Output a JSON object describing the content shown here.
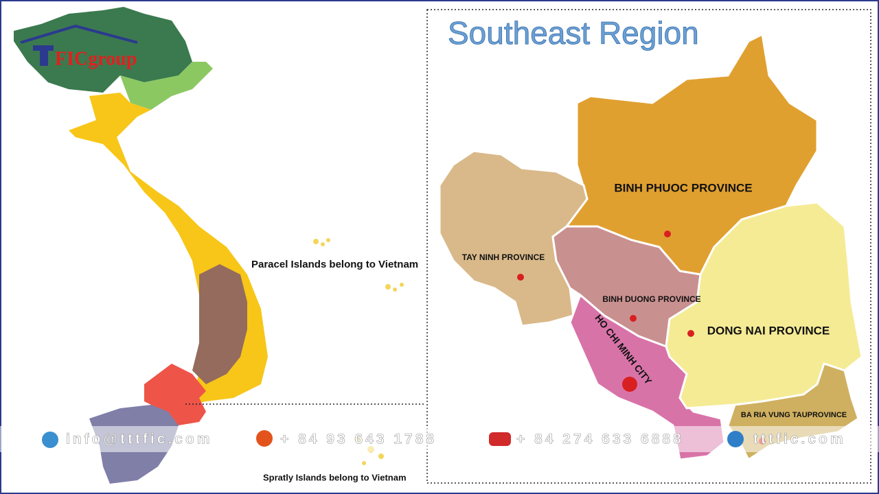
{
  "logo": "FICgroup",
  "title": "Southeast Region",
  "annotations": {
    "paracel": "Paracel Islands belong to Vietnam",
    "spratly": "Spratly Islands belong to Vietnam"
  },
  "provinces": [
    {
      "label": "BINH PHUOC PROVINCE"
    },
    {
      "label": "TAY NINH PROVINCE"
    },
    {
      "label": "BINH DUONG PROVINCE"
    },
    {
      "label": "HO CHI MINH CITY"
    },
    {
      "label": "DONG NAI PROVINCE"
    },
    {
      "label": "BA RIA VUNG TAUPROVINCE"
    }
  ],
  "contacts": [
    "info@tttfic.com",
    "+ 84 93 643 1788",
    "+ 84 274 633 6888",
    "tttfic.com"
  ]
}
